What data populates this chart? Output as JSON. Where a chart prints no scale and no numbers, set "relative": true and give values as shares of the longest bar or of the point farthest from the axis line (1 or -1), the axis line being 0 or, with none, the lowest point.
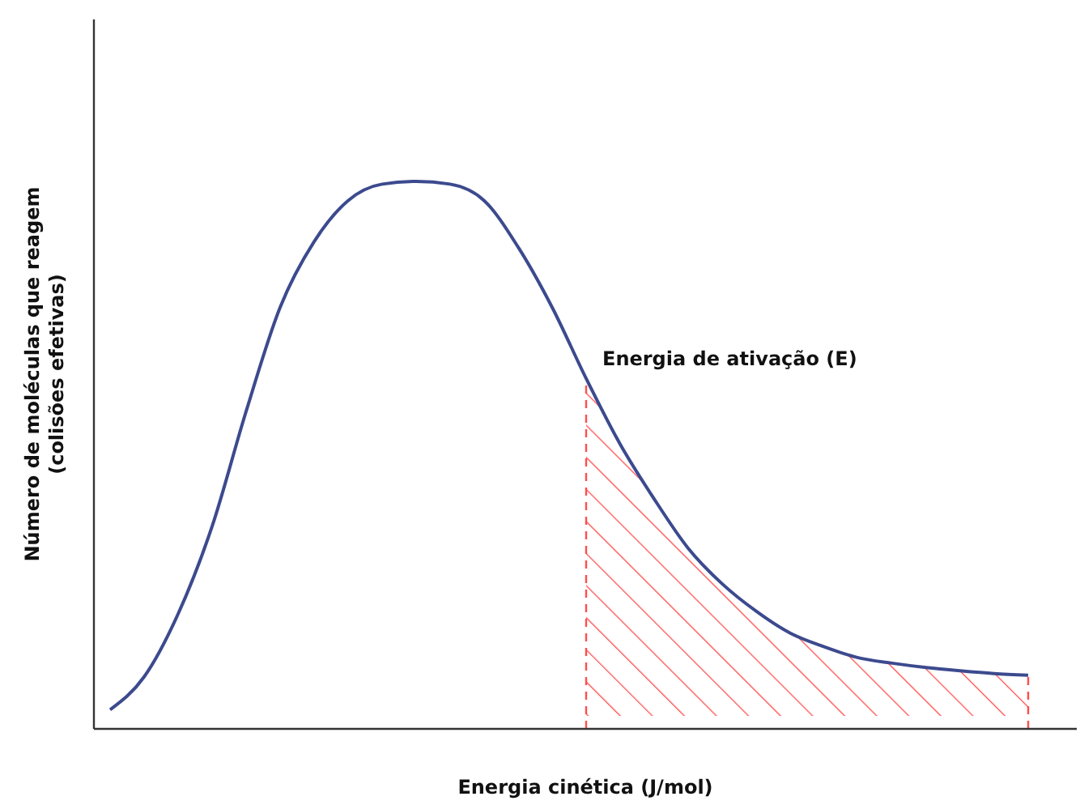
{
  "chart_data": {
    "type": "line",
    "relative": true,
    "xlabel": "Energia cinética (J/mol)",
    "ylabel": "Número de moléculas que reagem\n(colisões efetivas)",
    "annotations": [
      "Energia de ativação (E)"
    ],
    "categories": [
      null,
      null,
      null,
      null,
      null,
      null,
      null,
      null,
      null,
      null,
      null,
      null,
      null,
      null,
      null,
      null,
      null,
      null,
      null,
      null,
      null,
      null,
      null,
      null,
      null,
      null,
      null,
      null
    ],
    "series": [
      {
        "color": "#3c4a8e",
        "values": [
          0.035,
          0.095,
          0.21,
          0.37,
          0.58,
          0.77,
          0.89,
          0.965,
          0.995,
          1.0,
          0.995,
          0.965,
          0.88,
          0.77,
          0.64,
          0.52,
          0.42,
          0.33,
          0.265,
          0.215,
          0.175,
          0.15,
          0.13,
          0.12,
          0.112,
          0.106,
          0.101,
          0.098
        ]
      },
      {
        "type": "area",
        "color": "#ff4d4d",
        "values": [
          null,
          null,
          null,
          null,
          null,
          null,
          null,
          null,
          null,
          null,
          null,
          null,
          null,
          null,
          0.64,
          0.52,
          0.42,
          0.33,
          0.265,
          0.215,
          0.175,
          0.15,
          0.13,
          0.12,
          0.112,
          0.106,
          0.101,
          0.098
        ]
      }
    ],
    "marker": "none",
    "line_style": "solid"
  }
}
